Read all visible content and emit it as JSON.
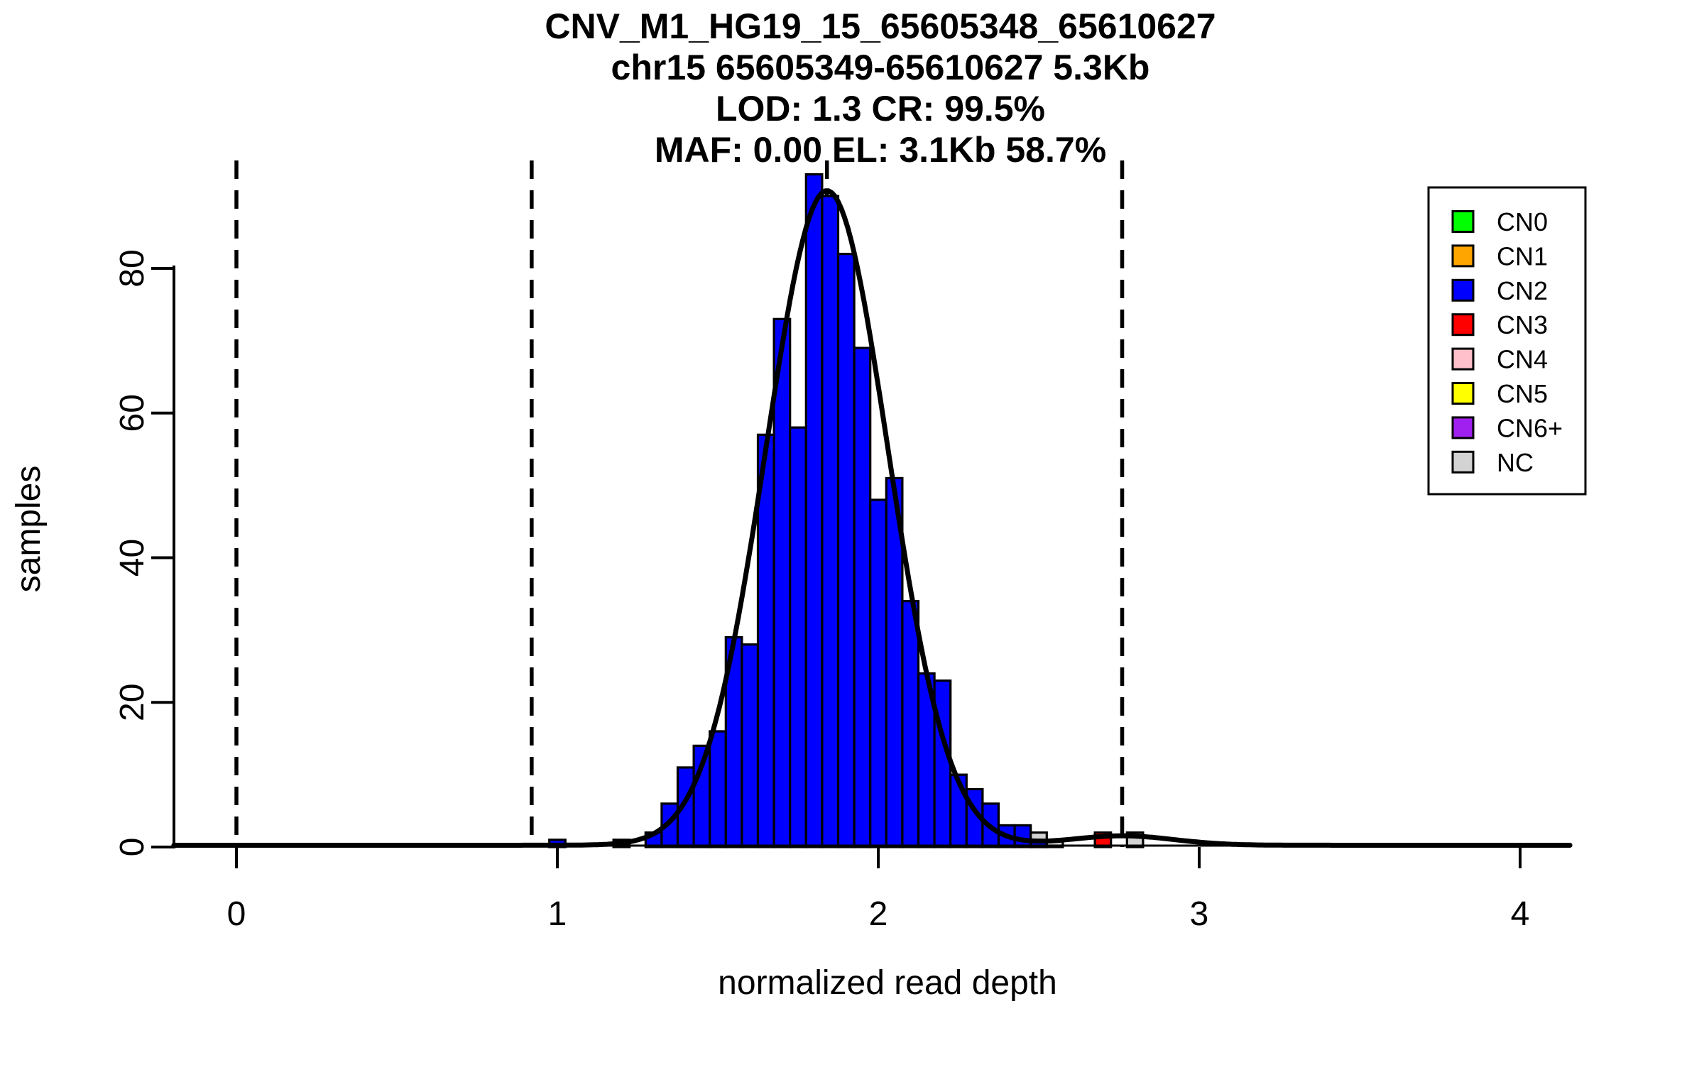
{
  "chart": {
    "titles": [
      "CNV_M1_HG19_15_65605348_65610627",
      "chr15 65605349-65610627 5.3Kb",
      "LOD: 1.3 CR: 99.5%",
      "MAF: 0.00 EL: 3.1Kb 58.7%"
    ],
    "xlabel": "normalized read depth",
    "ylabel": "samples"
  },
  "legend": {
    "items": [
      {
        "label": "CN0",
        "color": "#00FF00"
      },
      {
        "label": "CN1",
        "color": "#FFA500"
      },
      {
        "label": "CN2",
        "color": "#0000FF"
      },
      {
        "label": "CN3",
        "color": "#FF0000"
      },
      {
        "label": "CN4",
        "color": "#FFC0CB"
      },
      {
        "label": "CN5",
        "color": "#FFFF00"
      },
      {
        "label": "CN6+",
        "color": "#A020F0"
      },
      {
        "label": "NC",
        "color": "#D3D3D3"
      }
    ]
  },
  "chart_data": {
    "type": "bar",
    "subtype": "histogram-with-density-curve",
    "title": "CNV_M1_HG19_15_65605348_65610627",
    "xlabel": "normalized read depth",
    "ylabel": "samples",
    "xlim": [
      -0.2,
      4.2
    ],
    "ylim": [
      0,
      96
    ],
    "grid": false,
    "legend_position": "top-right",
    "x_ticks": [
      "0",
      "1",
      "2",
      "3",
      "4"
    ],
    "y_ticks": [
      "0",
      "20",
      "40",
      "60",
      "80"
    ],
    "bin_width": 0.05,
    "bars": [
      {
        "x": 1.0,
        "count": 1,
        "cn": "CN2"
      },
      {
        "x": 1.2,
        "count": 1,
        "cn": "CN2"
      },
      {
        "x": 1.3,
        "count": 2,
        "cn": "CN2"
      },
      {
        "x": 1.35,
        "count": 6,
        "cn": "CN2"
      },
      {
        "x": 1.4,
        "count": 11,
        "cn": "CN2"
      },
      {
        "x": 1.45,
        "count": 14,
        "cn": "CN2"
      },
      {
        "x": 1.5,
        "count": 16,
        "cn": "CN2"
      },
      {
        "x": 1.55,
        "count": 29,
        "cn": "CN2"
      },
      {
        "x": 1.6,
        "count": 28,
        "cn": "CN2"
      },
      {
        "x": 1.65,
        "count": 57,
        "cn": "CN2"
      },
      {
        "x": 1.7,
        "count": 73,
        "cn": "CN2"
      },
      {
        "x": 1.75,
        "count": 58,
        "cn": "CN2"
      },
      {
        "x": 1.8,
        "count": 93,
        "cn": "CN2"
      },
      {
        "x": 1.85,
        "count": 90,
        "cn": "CN2"
      },
      {
        "x": 1.9,
        "count": 82,
        "cn": "CN2"
      },
      {
        "x": 1.95,
        "count": 69,
        "cn": "CN2"
      },
      {
        "x": 2.0,
        "count": 48,
        "cn": "CN2"
      },
      {
        "x": 2.05,
        "count": 51,
        "cn": "CN2"
      },
      {
        "x": 2.1,
        "count": 34,
        "cn": "CN2"
      },
      {
        "x": 2.15,
        "count": 24,
        "cn": "CN2"
      },
      {
        "x": 2.2,
        "count": 23,
        "cn": "CN2"
      },
      {
        "x": 2.25,
        "count": 10,
        "cn": "CN2"
      },
      {
        "x": 2.3,
        "count": 8,
        "cn": "CN2"
      },
      {
        "x": 2.35,
        "count": 6,
        "cn": "CN2"
      },
      {
        "x": 2.4,
        "count": 3,
        "cn": "CN2"
      },
      {
        "x": 2.45,
        "count": 3,
        "cn": "CN2"
      },
      {
        "x": 2.5,
        "count": 2,
        "cn": "NC"
      },
      {
        "x": 2.5,
        "count": 1,
        "cn": "CN2"
      },
      {
        "x": 2.55,
        "count": 1,
        "cn": "NC"
      },
      {
        "x": 2.7,
        "count": 2,
        "cn": "CN3"
      },
      {
        "x": 2.8,
        "count": 2,
        "cn": "NC"
      }
    ],
    "curve": {
      "baseline": 0.25,
      "components": [
        {
          "mean": 1.84,
          "sd": 0.19,
          "amplitude": 90.5
        },
        {
          "mean": 2.76,
          "sd": 0.16,
          "amplitude": 1.3
        }
      ]
    },
    "dashed_lines_x": [
      0,
      0.92,
      1.84,
      2.76
    ]
  }
}
